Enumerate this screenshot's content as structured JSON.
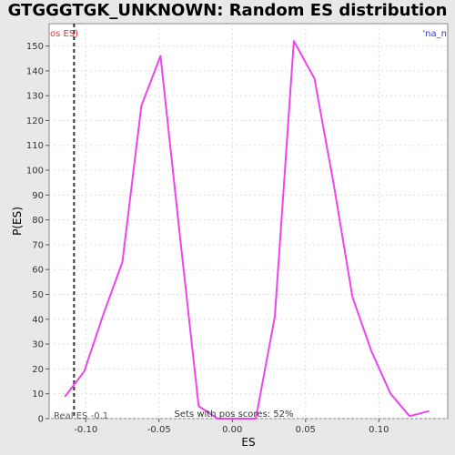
{
  "chart_data": {
    "type": "line",
    "title": "GTGGGTGK_UNKNOWN: Random ES distribution",
    "xlabel": "ES",
    "ylabel": "P(ES)",
    "xlim": [
      -0.125,
      0.147
    ],
    "ylim": [
      0,
      159
    ],
    "grid": true,
    "x_ticks": [
      "-0.10",
      "-0.05",
      "0.00",
      "0.05",
      "0.10"
    ],
    "x_tick_values": [
      -0.1,
      -0.05,
      0.0,
      0.05,
      0.1
    ],
    "y_ticks": [
      "0",
      "10",
      "20",
      "30",
      "40",
      "50",
      "60",
      "70",
      "80",
      "90",
      "100",
      "110",
      "120",
      "130",
      "140",
      "150"
    ],
    "series": [
      {
        "color": "#ee44ee",
        "x": [
          -0.114,
          -0.101,
          -0.088,
          -0.075,
          -0.062,
          -0.049,
          -0.036,
          -0.023,
          -0.01,
          0.003,
          0.016,
          0.029,
          0.042,
          0.056,
          0.069,
          0.082,
          0.095,
          0.108,
          0.121,
          0.134
        ],
        "y": [
          9,
          19,
          42,
          63,
          126,
          146,
          75,
          5,
          0,
          0,
          0,
          41,
          152,
          137,
          95,
          49,
          27,
          10,
          1,
          3
        ]
      }
    ],
    "real_es": {
      "value": -0.108,
      "label": "Real ES -0.1"
    },
    "annotations": {
      "left_legend": "os ES)",
      "right_legend": "'na_n",
      "pos_scores": "Sets with pos scores: 52%"
    }
  }
}
